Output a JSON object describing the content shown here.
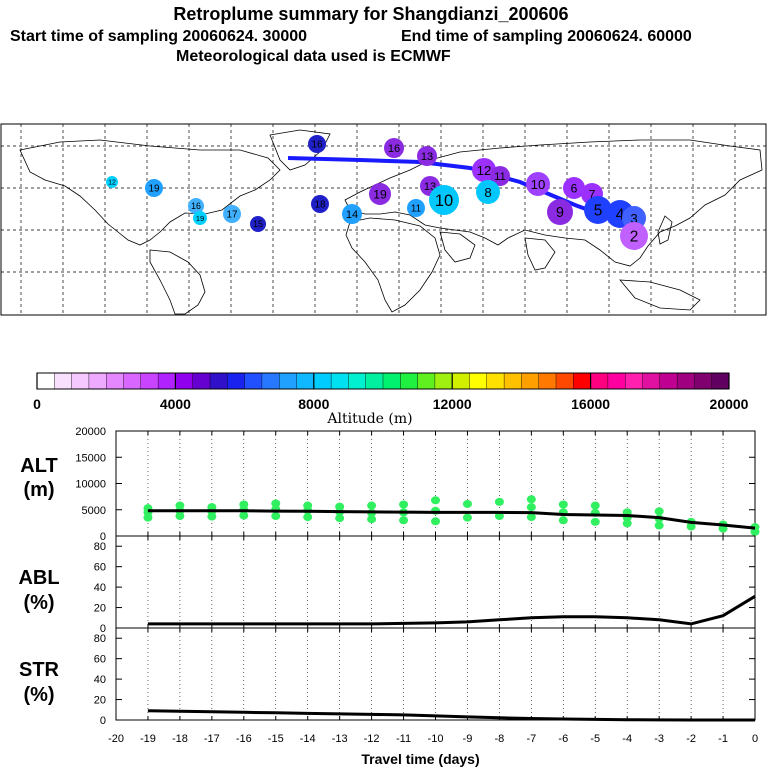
{
  "header": {
    "title": "Retroplume summary for Shangdianzi_200606",
    "line2_start": "Start time of sampling 20060624. 30000",
    "line2_end": "End time of sampling 20060624. 60000",
    "line3": "Meteorological data used is ECMWF"
  },
  "colorbar": {
    "ticks": [
      "0",
      "4000",
      "8000",
      "12000",
      "16000",
      "20000"
    ],
    "label": "Altitude (m)"
  },
  "map_markers": [
    {
      "label": "16",
      "color": "#2020c8"
    },
    {
      "label": "16",
      "color": "#8a2be2"
    },
    {
      "label": "13",
      "color": "#8a2be2"
    },
    {
      "label": "12",
      "color": "#9b30ff"
    },
    {
      "label": "11",
      "color": "#8a2be2"
    },
    {
      "label": "10",
      "color": "#a040ff"
    },
    {
      "label": "6",
      "color": "#9b30ff"
    },
    {
      "label": "7",
      "color": "#9b30ff"
    },
    {
      "label": "5",
      "color": "#2040ff"
    },
    {
      "label": "4",
      "color": "#2040ff"
    },
    {
      "label": "3",
      "color": "#4060ff"
    },
    {
      "label": "2",
      "color": "#c060ff"
    },
    {
      "label": "9",
      "color": "#8a2be2"
    },
    {
      "label": "19",
      "color": "#8a2be2"
    },
    {
      "label": "13",
      "color": "#8a2be2"
    },
    {
      "label": "8",
      "color": "#00c8ff"
    },
    {
      "label": "10",
      "color": "#00c8ff"
    },
    {
      "label": "11",
      "color": "#20a0ff"
    },
    {
      "label": "14",
      "color": "#20a0ff"
    },
    {
      "label": "18",
      "color": "#2020c8"
    },
    {
      "label": "19",
      "color": "#20a0ff"
    },
    {
      "label": "17",
      "color": "#40b0ff"
    },
    {
      "label": "16",
      "color": "#40b0ff"
    },
    {
      "label": "15",
      "color": "#2020c8"
    },
    {
      "label": "19",
      "color": "#00d0ff"
    },
    {
      "label": "12",
      "color": "#00d0ff"
    }
  ],
  "chart_data": [
    {
      "name": "ALT",
      "type": "line",
      "ylabel": "ALT",
      "ylabel_unit": "(m)",
      "ylim": [
        0,
        20000
      ],
      "yticks": [
        "0",
        "5000",
        "10000",
        "15000",
        "20000"
      ],
      "xlim": [
        -20,
        0
      ],
      "x": [
        -19,
        -18,
        -17,
        -16,
        -15,
        -14,
        -13,
        -12,
        -11,
        -10,
        -9,
        -8,
        -7,
        -6,
        -5,
        -4,
        -3,
        -2,
        -1,
        0
      ],
      "line_values": [
        4800,
        4800,
        4800,
        4800,
        4750,
        4700,
        4650,
        4600,
        4550,
        4500,
        4500,
        4500,
        4450,
        4100,
        4000,
        3900,
        3500,
        2600,
        2100,
        1500
      ],
      "scatter": [
        {
          "x": -19,
          "y": [
            3500,
            4500,
            5300
          ]
        },
        {
          "x": -18,
          "y": [
            3800,
            4800,
            5800
          ]
        },
        {
          "x": -17,
          "y": [
            3700,
            4700,
            5500
          ]
        },
        {
          "x": -16,
          "y": [
            3900,
            5000,
            6000
          ]
        },
        {
          "x": -15,
          "y": [
            3800,
            5100,
            6200
          ]
        },
        {
          "x": -14,
          "y": [
            3600,
            4900,
            5800
          ]
        },
        {
          "x": -13,
          "y": [
            3400,
            4600,
            5600
          ]
        },
        {
          "x": -12,
          "y": [
            3200,
            4400,
            5800
          ]
        },
        {
          "x": -11,
          "y": [
            3000,
            4500,
            6000
          ]
        },
        {
          "x": -10,
          "y": [
            2800,
            4800,
            6800
          ]
        },
        {
          "x": -9,
          "y": [
            3500,
            6100
          ]
        },
        {
          "x": -8,
          "y": [
            3800,
            6500
          ]
        },
        {
          "x": -7,
          "y": [
            3600,
            5500,
            7000
          ]
        },
        {
          "x": -6,
          "y": [
            3000,
            4500,
            6000
          ]
        },
        {
          "x": -5,
          "y": [
            2700,
            4400,
            5800
          ]
        },
        {
          "x": -4,
          "y": [
            2400,
            3500,
            4500
          ]
        },
        {
          "x": -3,
          "y": [
            2000,
            3300,
            4700
          ]
        },
        {
          "x": -2,
          "y": [
            1800,
            2700
          ]
        },
        {
          "x": -1,
          "y": [
            1400,
            2200
          ]
        },
        {
          "x": 0,
          "y": [
            800,
            1700
          ]
        }
      ]
    },
    {
      "name": "ABL",
      "type": "line",
      "ylabel": "ABL",
      "ylabel_unit": "(%)",
      "ylim": [
        0,
        90
      ],
      "yticks": [
        "0",
        "20",
        "40",
        "60",
        "80"
      ],
      "yticks_minor": [
        10,
        30,
        50,
        70,
        90
      ],
      "xlim": [
        -20,
        0
      ],
      "x": [
        -19,
        -18,
        -17,
        -16,
        -15,
        -14,
        -13,
        -12,
        -11,
        -10,
        -9,
        -8,
        -7,
        -6,
        -5,
        -4,
        -3,
        -2,
        -1,
        0
      ],
      "values": [
        4,
        4,
        4,
        4,
        4,
        4,
        4,
        4,
        4.5,
        5,
        6,
        8,
        10,
        11,
        11,
        10,
        8,
        4,
        12,
        31
      ]
    },
    {
      "name": "STR",
      "type": "line",
      "ylabel": "STR",
      "ylabel_unit": "(%)",
      "ylim": [
        0,
        90
      ],
      "yticks": [
        "0",
        "20",
        "40",
        "60",
        "80"
      ],
      "xlim": [
        -20,
        0
      ],
      "x": [
        -19,
        -18,
        -17,
        -16,
        -15,
        -14,
        -13,
        -12,
        -11,
        -10,
        -9,
        -8,
        -7,
        -6,
        -5,
        -4,
        -3,
        -2,
        -1,
        0
      ],
      "values": [
        9,
        8.5,
        8,
        7.5,
        7,
        6.5,
        6,
        5.5,
        5,
        4,
        3,
        2.2,
        1.5,
        1,
        0.6,
        0.3,
        0.1,
        0,
        0,
        0
      ],
      "xticks": [
        "-20",
        "-19",
        "-18",
        "-17",
        "-16",
        "-15",
        "-14",
        "-13",
        "-12",
        "-11",
        "-10",
        "-9",
        "-8",
        "-7",
        "-6",
        "-5",
        "-4",
        "-3",
        "-2",
        "-1",
        "0"
      ],
      "xlabel": "Travel time (days)"
    }
  ]
}
